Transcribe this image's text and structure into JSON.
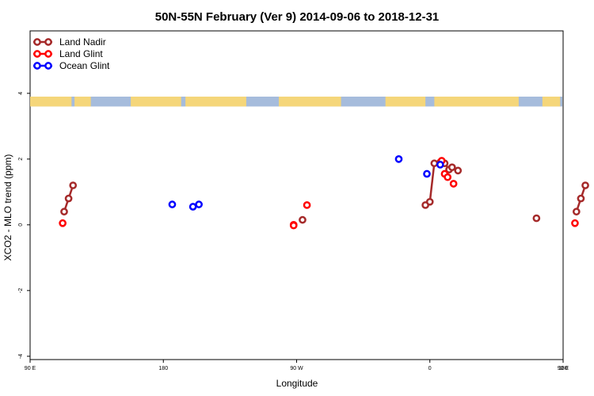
{
  "chart_data": {
    "type": "scatter",
    "title": "50N-55N February (Ver 9)   2014-09-06 to 2018-12-31",
    "xlabel": "Longitude",
    "ylabel": "XCO2 - MLO trend (ppm)",
    "xlim": [
      90,
      450
    ],
    "ylim": [
      -4.1,
      5.9
    ],
    "x_ticks": [
      {
        "value": 90,
        "label": "90 E"
      },
      {
        "value": 180,
        "label": "180"
      },
      {
        "value": 270,
        "label": "90 W"
      },
      {
        "value": 360,
        "label": "0"
      },
      {
        "value": 450,
        "label": "90 E"
      },
      {
        "value": 540,
        "label": "180"
      }
    ],
    "y_ticks": [
      {
        "value": -4,
        "label": "-4"
      },
      {
        "value": -2,
        "label": "-2"
      },
      {
        "value": 0,
        "label": "0"
      },
      {
        "value": 2,
        "label": "2"
      },
      {
        "value": 4,
        "label": "4"
      }
    ],
    "legend_position": "top-left",
    "map_strip": {
      "ymin": 3.6,
      "ymax": 3.9,
      "land_color": "#f5d67a",
      "ocean_color": "#a6bcdc"
    },
    "series": [
      {
        "name": "Land Nadir",
        "color": "#a52a2a",
        "connected": true,
        "segments": [
          [
            [
              113,
              0.4
            ],
            [
              116,
              0.8
            ],
            [
              119,
              1.2
            ]
          ],
          [
            [
              357,
              0.6
            ],
            [
              360,
              0.7
            ],
            [
              363,
              1.87
            ],
            [
              367,
              1.9
            ],
            [
              370,
              1.87
            ],
            [
              373,
              1.68
            ],
            [
              375,
              1.75
            ],
            [
              379,
              1.65
            ]
          ],
          [
            [
              274,
              0.15
            ]
          ],
          [
            [
              432,
              0.2
            ]
          ],
          [
            [
              459,
              0.4
            ],
            [
              462,
              0.8
            ],
            [
              465,
              1.2
            ]
          ]
        ]
      },
      {
        "name": "Land Glint",
        "color": "#ff0000",
        "connected": false,
        "points": [
          [
            112,
            0.05
          ],
          [
            268,
            0.0
          ],
          [
            268,
            -0.02
          ],
          [
            277,
            0.6
          ],
          [
            368,
            1.95
          ],
          [
            370,
            1.55
          ],
          [
            372,
            1.45
          ],
          [
            376,
            1.25
          ],
          [
            458,
            0.05
          ]
        ]
      },
      {
        "name": "Ocean Glint",
        "color": "#0000ff",
        "connected": false,
        "points": [
          [
            186,
            0.62
          ],
          [
            200,
            0.55
          ],
          [
            204,
            0.62
          ],
          [
            339,
            2.0
          ],
          [
            358,
            1.55
          ],
          [
            367,
            1.83
          ]
        ]
      }
    ]
  }
}
